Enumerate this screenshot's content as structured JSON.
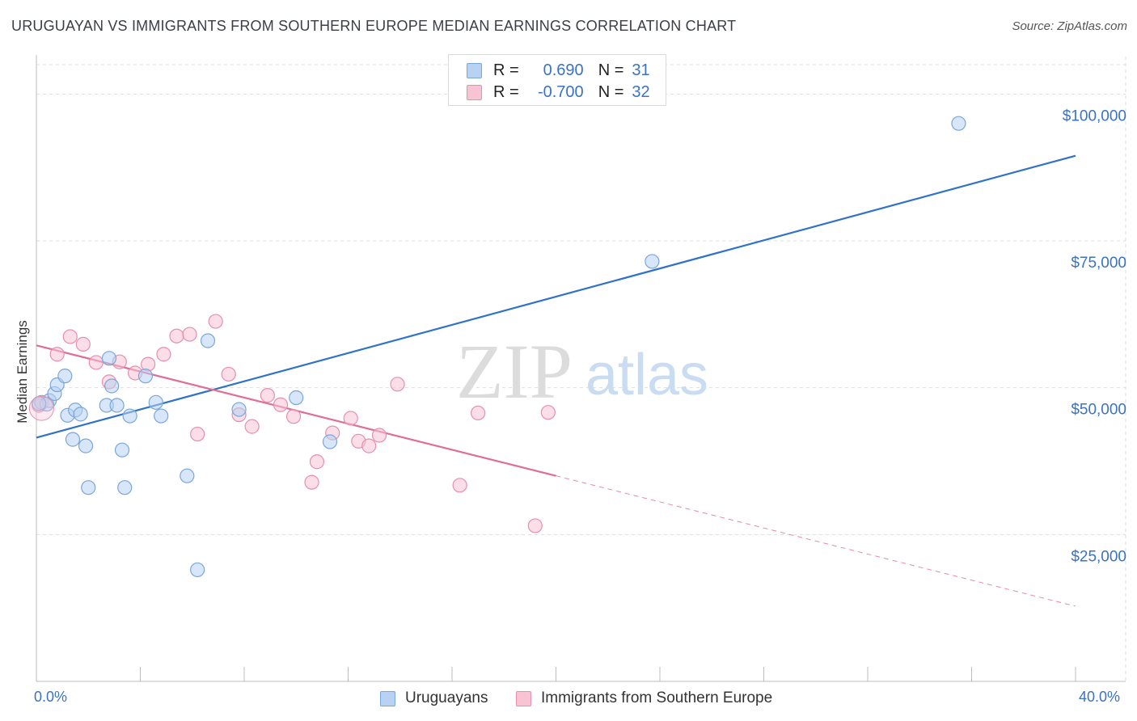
{
  "title": "URUGUAYAN VS IMMIGRANTS FROM SOUTHERN EUROPE MEDIAN EARNINGS CORRELATION CHART",
  "source": "Source: ZipAtlas.com",
  "watermark": {
    "zip": "ZIP",
    "atlas": "atlas"
  },
  "legend": {
    "rows": [
      {
        "r_label": "R =",
        "r_value": "0.690",
        "n_label": "N =",
        "n_value": "31"
      },
      {
        "r_label": "R =",
        "r_value": "-0.700",
        "n_label": "N =",
        "n_value": "32"
      }
    ]
  },
  "colors": {
    "blue_fill": "#b7d2f3",
    "blue_stroke": "#7aa6dc",
    "blue_line": "#2f72c9",
    "pink_fill": "#f8c3d3",
    "pink_stroke": "#e690ac",
    "pink_line": "#e06d96",
    "axis_text": "#3a72c4",
    "grid": "#dddddd"
  },
  "chart_data": {
    "type": "scatter",
    "title": "URUGUAYAN VS IMMIGRANTS FROM SOUTHERN EUROPE MEDIAN EARNINGS CORRELATION CHART",
    "xlabel": "",
    "ylabel": "Median Earnings",
    "xlim": [
      0,
      40
    ],
    "ylim": [
      0,
      105000
    ],
    "x_tick_labels": [
      "0.0%",
      "40.0%"
    ],
    "y_ticks": [
      25000,
      50000,
      75000,
      100000
    ],
    "y_tick_labels": [
      "$25,000",
      "$50,000",
      "$75,000",
      "$100,000"
    ],
    "grid": true,
    "legend_position": "top-center",
    "series": [
      {
        "name": "Uruguayans",
        "color": "#7aa6dc",
        "r": 0.69,
        "n": 31,
        "points": [
          [
            0.2,
            47500
          ],
          [
            0.5,
            47800
          ],
          [
            0.4,
            47200
          ],
          [
            0.7,
            49000
          ],
          [
            0.8,
            50500
          ],
          [
            1.1,
            52000
          ],
          [
            1.2,
            45300
          ],
          [
            1.4,
            41200
          ],
          [
            1.5,
            46200
          ],
          [
            1.7,
            45500
          ],
          [
            1.9,
            40100
          ],
          [
            2.0,
            33000
          ],
          [
            2.8,
            55000
          ],
          [
            2.9,
            50300
          ],
          [
            2.7,
            47000
          ],
          [
            3.1,
            47000
          ],
          [
            3.3,
            39400
          ],
          [
            3.4,
            33000
          ],
          [
            3.6,
            45200
          ],
          [
            4.2,
            52000
          ],
          [
            4.6,
            47500
          ],
          [
            4.8,
            45200
          ],
          [
            5.8,
            35000
          ],
          [
            6.2,
            19000
          ],
          [
            6.6,
            58000
          ],
          [
            7.8,
            46300
          ],
          [
            10.0,
            48300
          ],
          [
            11.3,
            40800
          ],
          [
            23.7,
            71500
          ],
          [
            35.5,
            95000
          ],
          [
            0.1,
            47300
          ]
        ],
        "trend": {
          "x": [
            0,
            40
          ],
          "y": [
            41500,
            89500
          ]
        }
      },
      {
        "name": "Immigrants from Southern Europe",
        "color": "#e690ac",
        "r": -0.7,
        "n": 32,
        "points": [
          [
            0.1,
            47000
          ],
          [
            0.8,
            55700
          ],
          [
            1.3,
            58700
          ],
          [
            1.8,
            57400
          ],
          [
            2.3,
            54300
          ],
          [
            2.8,
            51000
          ],
          [
            3.2,
            54400
          ],
          [
            3.8,
            52500
          ],
          [
            4.3,
            54000
          ],
          [
            4.9,
            55700
          ],
          [
            5.4,
            58800
          ],
          [
            5.9,
            59100
          ],
          [
            6.2,
            42100
          ],
          [
            6.9,
            61300
          ],
          [
            7.4,
            52300
          ],
          [
            7.8,
            45400
          ],
          [
            8.3,
            43400
          ],
          [
            8.9,
            48700
          ],
          [
            9.4,
            47100
          ],
          [
            9.9,
            45100
          ],
          [
            10.6,
            33900
          ],
          [
            10.8,
            37400
          ],
          [
            11.4,
            42300
          ],
          [
            12.1,
            44800
          ],
          [
            12.4,
            40900
          ],
          [
            12.8,
            40100
          ],
          [
            13.2,
            41900
          ],
          [
            13.9,
            50600
          ],
          [
            16.3,
            33400
          ],
          [
            17.0,
            45700
          ],
          [
            19.2,
            26500
          ],
          [
            19.7,
            45800
          ]
        ],
        "trend": {
          "x": [
            0,
            20
          ],
          "y": [
            57200,
            35000
          ]
        },
        "trend_extension": {
          "x": [
            20,
            40
          ],
          "y": [
            35000,
            12800
          ]
        }
      }
    ]
  }
}
